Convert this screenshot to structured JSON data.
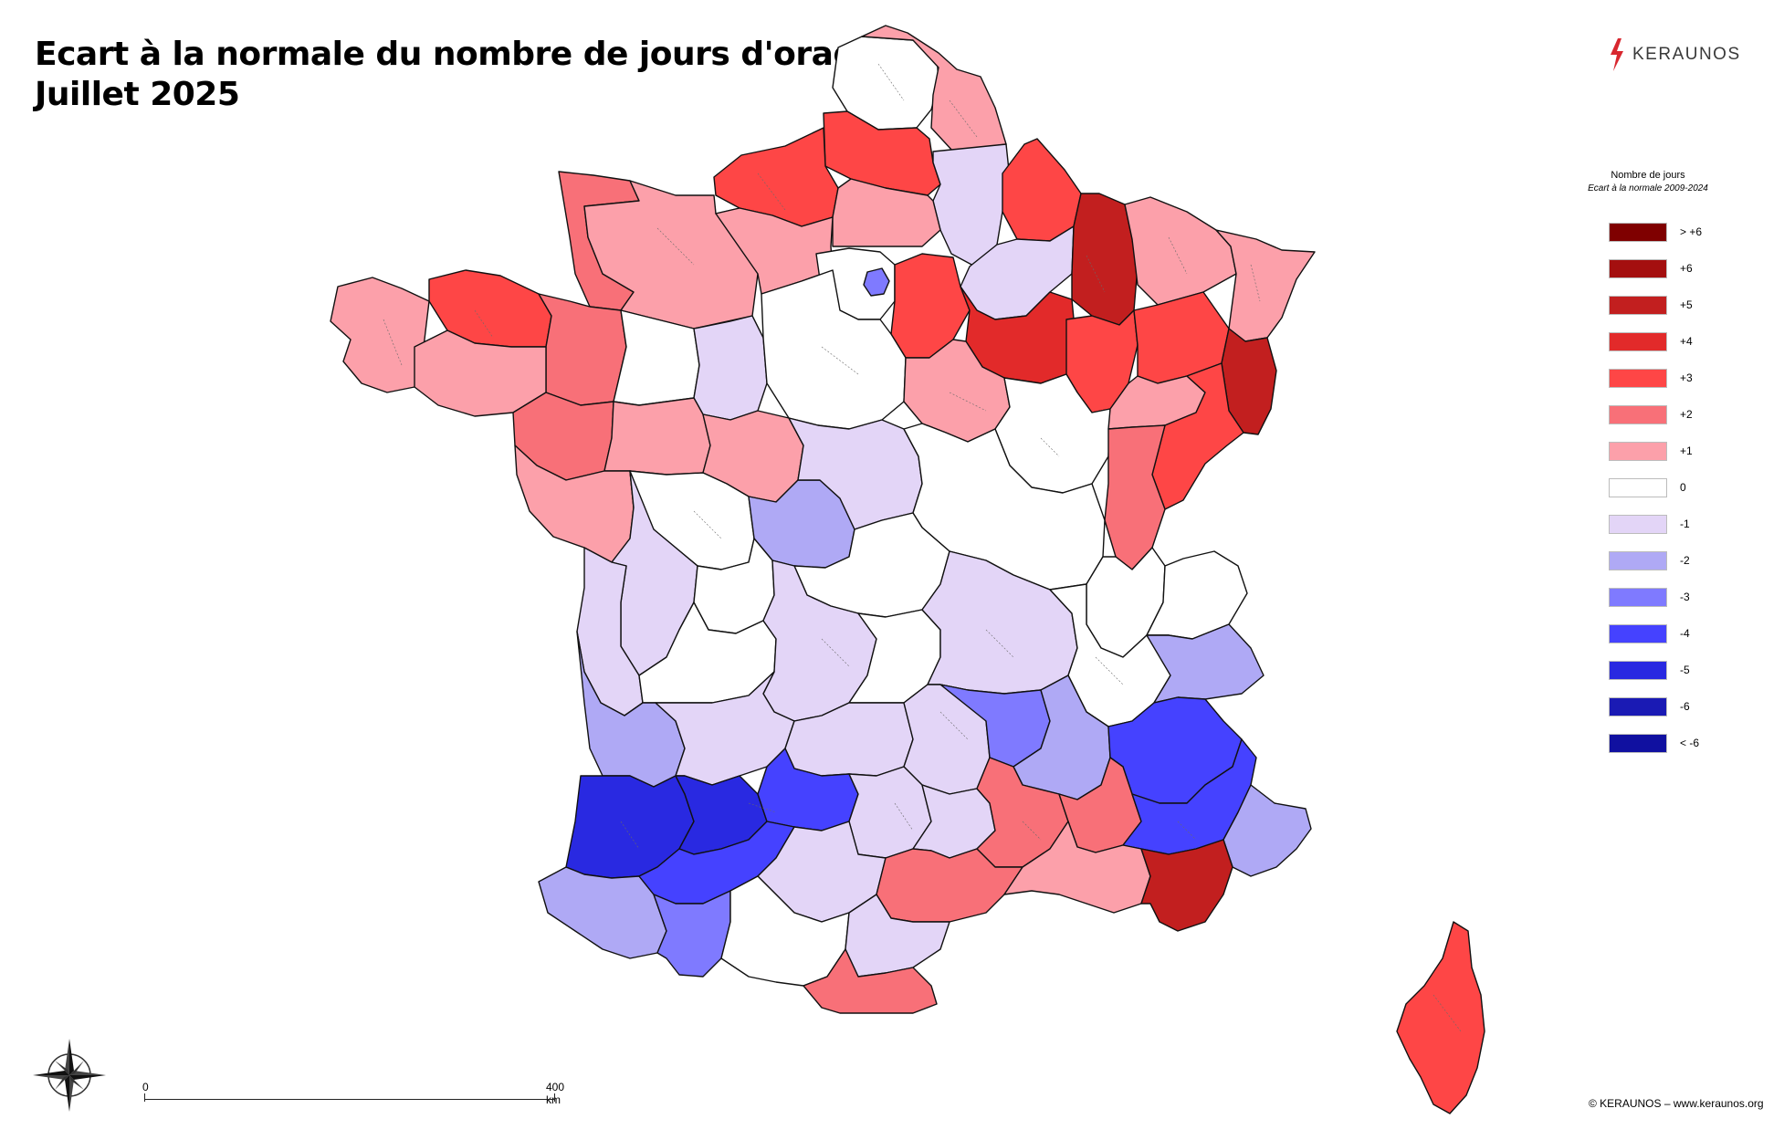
{
  "title": {
    "line1": "Ecart à la normale du nombre de jours d'orage",
    "line2": "Juillet 2025"
  },
  "brand": {
    "name": "KERAUNOS",
    "color": "#d8272f"
  },
  "legend": {
    "title": "Nombre de jours",
    "subtitle": "Ecart à la normale 2009-2024",
    "items": [
      {
        "label": "> +6",
        "color": "#7f0000"
      },
      {
        "label": "+6",
        "color": "#a40f0f"
      },
      {
        "label": "+5",
        "color": "#c21f1f"
      },
      {
        "label": "+4",
        "color": "#e22a2a"
      },
      {
        "label": "+3",
        "color": "#fe4646"
      },
      {
        "label": "+2",
        "color": "#f87078"
      },
      {
        "label": "+1",
        "color": "#fca0aa"
      },
      {
        "label": "0",
        "color": "#ffffff"
      },
      {
        "label": "-1",
        "color": "#e3d5f7"
      },
      {
        "label": "-2",
        "color": "#afa9f5"
      },
      {
        "label": "-3",
        "color": "#7f7aff"
      },
      {
        "label": "-4",
        "color": "#4542ff"
      },
      {
        "label": "-5",
        "color": "#2929e1"
      },
      {
        "label": "-6",
        "color": "#1a1ab4"
      },
      {
        "label": "< -6",
        "color": "#1010a0"
      }
    ]
  },
  "map": {
    "regions": [
      {
        "name": "haut-de-france-nord",
        "value": 0
      },
      {
        "name": "pas-de-calais-east",
        "value": 1
      },
      {
        "name": "somme",
        "value": 3
      },
      {
        "name": "seine-maritime",
        "value": 3
      },
      {
        "name": "aisne",
        "value": -1
      },
      {
        "name": "ardennes",
        "value": 3
      },
      {
        "name": "oise",
        "value": 1
      },
      {
        "name": "manche",
        "value": 2
      },
      {
        "name": "calvados-orne",
        "value": 1
      },
      {
        "name": "eure",
        "value": 1
      },
      {
        "name": "marne",
        "value": -1
      },
      {
        "name": "meuse",
        "value": 5
      },
      {
        "name": "moselle",
        "value": 1
      },
      {
        "name": "bas-rhin",
        "value": 1
      },
      {
        "name": "finistere",
        "value": 1
      },
      {
        "name": "cotes-d-armor",
        "value": 3
      },
      {
        "name": "ille-et-vilaine",
        "value": 2
      },
      {
        "name": "morbihan",
        "value": 1
      },
      {
        "name": "paris-region",
        "value": 0
      },
      {
        "name": "paris-core",
        "value": -3
      },
      {
        "name": "seine-et-marne",
        "value": 3
      },
      {
        "name": "aube",
        "value": 4
      },
      {
        "name": "haute-marne",
        "value": 3
      },
      {
        "name": "vosges",
        "value": 3
      },
      {
        "name": "haut-rhin",
        "value": 5
      },
      {
        "name": "mayenne-sarthe",
        "value": 0
      },
      {
        "name": "sarthe-east",
        "value": -1
      },
      {
        "name": "loire-atlantique",
        "value": 2
      },
      {
        "name": "maine-et-loire",
        "value": 1
      },
      {
        "name": "eure-et-loir-loiret",
        "value": 0
      },
      {
        "name": "yonne",
        "value": 1
      },
      {
        "name": "cote-d-or",
        "value": 0
      },
      {
        "name": "haute-saone",
        "value": 1
      },
      {
        "name": "doubs",
        "value": 3
      },
      {
        "name": "jura",
        "value": 2
      },
      {
        "name": "vendee",
        "value": 1
      },
      {
        "name": "indre-et-loire",
        "value": 1
      },
      {
        "name": "loir-et-cher",
        "value": 0
      },
      {
        "name": "cher",
        "value": -2
      },
      {
        "name": "nievre",
        "value": -1
      },
      {
        "name": "saone-et-loire",
        "value": 0
      },
      {
        "name": "ain",
        "value": 0
      },
      {
        "name": "haute-savoie",
        "value": 0
      },
      {
        "name": "deux-sevres-vienne",
        "value": -1
      },
      {
        "name": "vienne-east",
        "value": 0
      },
      {
        "name": "allier",
        "value": 0
      },
      {
        "name": "charente-maritime",
        "value": -1
      },
      {
        "name": "charente-haute-vienne",
        "value": 0
      },
      {
        "name": "creuse-correze",
        "value": -1
      },
      {
        "name": "puy-de-dome",
        "value": 0
      },
      {
        "name": "loire-rhone",
        "value": -1
      },
      {
        "name": "isere",
        "value": 0
      },
      {
        "name": "savoie",
        "value": -2
      },
      {
        "name": "gironde",
        "value": -2
      },
      {
        "name": "dordogne",
        "value": -1
      },
      {
        "name": "cantal",
        "value": -1
      },
      {
        "name": "haute-loire",
        "value": -1
      },
      {
        "name": "ardeche-nord",
        "value": -3
      },
      {
        "name": "drome",
        "value": -2
      },
      {
        "name": "hautes-alpes",
        "value": -4
      },
      {
        "name": "landes",
        "value": -5
      },
      {
        "name": "lot-et-garonne",
        "value": -5
      },
      {
        "name": "lot",
        "value": -4
      },
      {
        "name": "aveyron",
        "value": -1
      },
      {
        "name": "lozere",
        "value": -1
      },
      {
        "name": "gard-nord",
        "value": 2
      },
      {
        "name": "vaucluse",
        "value": 2
      },
      {
        "name": "alpes-hte-provence",
        "value": -4
      },
      {
        "name": "alpes-maritimes",
        "value": -2
      },
      {
        "name": "pyrenees-atlantiques",
        "value": -2
      },
      {
        "name": "gers-tarn-et-garonne",
        "value": -4
      },
      {
        "name": "tarn",
        "value": -1
      },
      {
        "name": "herault-gard",
        "value": 2
      },
      {
        "name": "bouches-du-rhone",
        "value": 1
      },
      {
        "name": "var",
        "value": 5
      },
      {
        "name": "hautes-pyrenees",
        "value": -3
      },
      {
        "name": "haute-garonne",
        "value": 0
      },
      {
        "name": "aude",
        "value": -1
      },
      {
        "name": "pyrenees-orientales",
        "value": 2
      },
      {
        "name": "corse",
        "value": 3
      }
    ]
  },
  "scale": {
    "start": "0",
    "end": "400 km"
  },
  "credit": "© KERAUNOS – www.keraunos.org"
}
